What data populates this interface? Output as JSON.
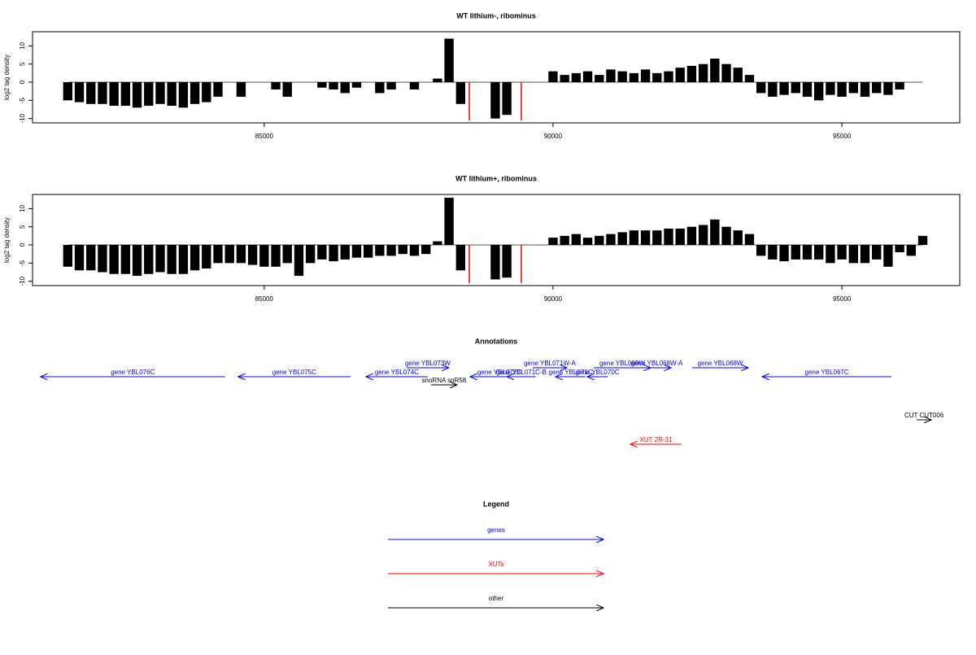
{
  "chart_data": [
    {
      "type": "bar",
      "title": "WT lithium-, ribominus",
      "ylabel": "log2 tag density",
      "xlim": [
        80990,
        97040
      ],
      "ylim": [
        -11.2,
        13.9
      ],
      "xticks": [
        85000,
        90000,
        95000
      ],
      "yticks": [
        -10,
        -5,
        0,
        5,
        10
      ],
      "series": [
        {
          "color": "#000000",
          "x": [
            81600,
            81800,
            82000,
            82200,
            82400,
            82600,
            82800,
            83000,
            83200,
            83400,
            83600,
            83800,
            84000,
            84200,
            84400,
            84600,
            84800,
            85000,
            85200,
            85400,
            85600,
            85800,
            86000,
            86200,
            86400,
            86600,
            86800,
            87000,
            87200,
            87400,
            87600,
            87800,
            88000,
            88200,
            88400,
            88600,
            88800,
            89000,
            89200,
            89400,
            89600,
            89800,
            90000,
            90200,
            90400,
            90600,
            90800,
            91000,
            91200,
            91400,
            91600,
            91800,
            92000,
            92200,
            92400,
            92600,
            92800,
            93000,
            93200,
            93400,
            93600,
            93800,
            94000,
            94200,
            94400,
            94600,
            94800,
            95000,
            95200,
            95400,
            95600,
            95800,
            96000,
            96200,
            96400
          ],
          "values": [
            -5,
            -5.5,
            -6,
            -6,
            -6.5,
            -6.5,
            -7,
            -6.5,
            -6,
            -6.5,
            -7,
            -6,
            -5.5,
            -4,
            0,
            -4,
            0,
            0,
            -2,
            -4,
            0,
            0,
            -1.5,
            -2,
            -3,
            -1.5,
            0,
            -3,
            -2,
            0,
            -2,
            0,
            1,
            12,
            -6,
            0,
            0,
            -10,
            -9,
            0,
            0,
            0,
            3,
            2,
            2.5,
            3,
            2,
            3.5,
            3,
            2.5,
            3.5,
            2.5,
            3,
            4,
            4.5,
            5,
            6.5,
            5,
            4,
            2,
            -3,
            -4,
            -3.5,
            -3,
            -4,
            -5,
            -3.5,
            -4,
            -3,
            -4,
            -3,
            -3.5,
            -2,
            0,
            0
          ]
        },
        {
          "color": "#ff0000",
          "x": [
            88550,
            89450
          ],
          "values": [
            -10.5,
            -10.5
          ]
        }
      ]
    },
    {
      "type": "bar",
      "title": "WT lithium+, ribominus",
      "ylabel": "log2 tag density",
      "xlim": [
        80990,
        97040
      ],
      "ylim": [
        -11.2,
        13.9
      ],
      "xticks": [
        85000,
        90000,
        95000
      ],
      "yticks": [
        -10,
        -5,
        0,
        5,
        10
      ],
      "series": [
        {
          "color": "#000000",
          "x": [
            81600,
            81800,
            82000,
            82200,
            82400,
            82600,
            82800,
            83000,
            83200,
            83400,
            83600,
            83800,
            84000,
            84200,
            84400,
            84600,
            84800,
            85000,
            85200,
            85400,
            85600,
            85800,
            86000,
            86200,
            86400,
            86600,
            86800,
            87000,
            87200,
            87400,
            87600,
            87800,
            88000,
            88200,
            88400,
            88600,
            88800,
            89000,
            89200,
            89400,
            89600,
            89800,
            90000,
            90200,
            90400,
            90600,
            90800,
            91000,
            91200,
            91400,
            91600,
            91800,
            92000,
            92200,
            92400,
            92600,
            92800,
            93000,
            93200,
            93400,
            93600,
            93800,
            94000,
            94200,
            94400,
            94600,
            94800,
            95000,
            95200,
            95400,
            95600,
            95800,
            96000,
            96200,
            96400
          ],
          "values": [
            -6,
            -7,
            -7,
            -7.5,
            -8,
            -8,
            -8.5,
            -8,
            -7.5,
            -8,
            -8,
            -7,
            -6.5,
            -5,
            -5,
            -5,
            -5.5,
            -6,
            -6,
            -5,
            -8.5,
            -5,
            -4,
            -4.5,
            -4,
            -3.5,
            -3.5,
            -3,
            -3,
            -2.5,
            -3,
            -2.5,
            1,
            13,
            -7,
            0,
            0,
            -9.5,
            -9,
            0,
            0,
            0,
            2,
            2.5,
            3,
            2,
            2.5,
            3,
            3.5,
            4,
            4,
            4,
            4.5,
            4.5,
            5,
            5.5,
            7,
            5,
            4,
            3,
            -3,
            -4,
            -4.5,
            -4,
            -4,
            -4,
            -5,
            -4,
            -5,
            -5,
            -4,
            -6,
            -2,
            -3,
            2.5
          ]
        },
        {
          "color": "#ff0000",
          "x": [
            88550,
            89450
          ],
          "values": [
            -10.5,
            -10.5
          ]
        }
      ]
    }
  ],
  "annotations": {
    "title": "Annotations",
    "features": [
      {
        "label": "gene YBL076C",
        "kind": "genes",
        "start": 81127,
        "end": 84324,
        "strand": "-"
      },
      {
        "label": "gene YBL075C",
        "kind": "genes",
        "start": 84549,
        "end": 86493,
        "strand": "-"
      },
      {
        "label": "gene YBL074C",
        "kind": "genes",
        "start": 86761,
        "end": 87831,
        "strand": "-"
      },
      {
        "label": "gene YBL073W",
        "kind": "genes",
        "start": 87465,
        "end": 88197,
        "strand": "+"
      },
      {
        "label": "snoRNA snR58",
        "kind": "other",
        "start": 87887,
        "end": 88338,
        "strand": "+"
      },
      {
        "label": "gene YBL072C",
        "kind": "genes",
        "start": 88563,
        "end": 89577,
        "strand": "-"
      },
      {
        "label": "gene YBL071C-B",
        "kind": "genes",
        "start": 89200,
        "end": 89700,
        "strand": "-"
      },
      {
        "label": "gene YBL071W-A",
        "kind": "genes",
        "start": 89648,
        "end": 90240,
        "strand": "+"
      },
      {
        "label": "gene YBL071C",
        "kind": "genes",
        "start": 90042,
        "end": 90563,
        "strand": "-"
      },
      {
        "label": "gene YBL070C",
        "kind": "genes",
        "start": 90592,
        "end": 90944,
        "strand": "-"
      },
      {
        "label": "gene YBL069W",
        "kind": "genes",
        "start": 90704,
        "end": 91690,
        "strand": "+"
      },
      {
        "label": "gene YBL068W-A",
        "kind": "genes",
        "start": 91550,
        "end": 92042,
        "strand": "+"
      },
      {
        "label": "gene YBL068W",
        "kind": "genes",
        "start": 92408,
        "end": 93380,
        "strand": "+"
      },
      {
        "label": "gene YBL067C",
        "kind": "genes",
        "start": 93620,
        "end": 95859,
        "strand": "-"
      },
      {
        "label": "CUT CUT006",
        "kind": "other",
        "start": 96296,
        "end": 96549,
        "strand": "+"
      },
      {
        "label": "XUT 2R-31",
        "kind": "XUTs",
        "start": 91338,
        "end": 92225,
        "strand": "-"
      }
    ]
  },
  "legend": {
    "title": "Legend",
    "items": [
      {
        "label": "genes",
        "color": "#0000ff"
      },
      {
        "label": "XUTs",
        "color": "#ff0000"
      },
      {
        "label": "other",
        "color": "#000000"
      }
    ]
  }
}
